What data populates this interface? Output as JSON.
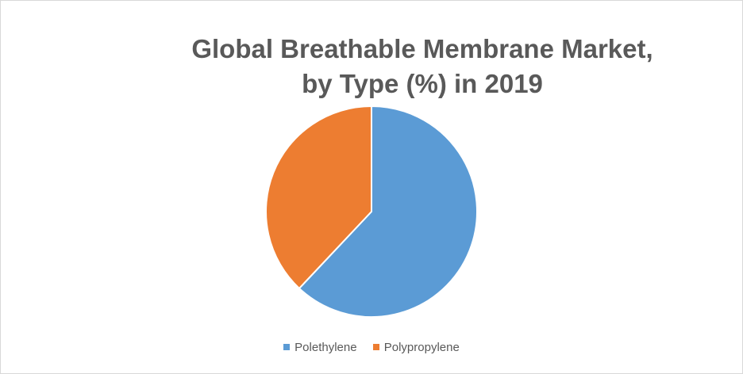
{
  "chart_data": {
    "type": "pie",
    "title_lines": [
      "Global Breathable Membrane Market,",
      "by Type (%) in 2019"
    ],
    "categories": [
      "Polethylene",
      "Polypropylene"
    ],
    "values": [
      62,
      38
    ],
    "colors": [
      "#5b9bd5",
      "#ed7d31"
    ],
    "legend_position": "bottom"
  }
}
